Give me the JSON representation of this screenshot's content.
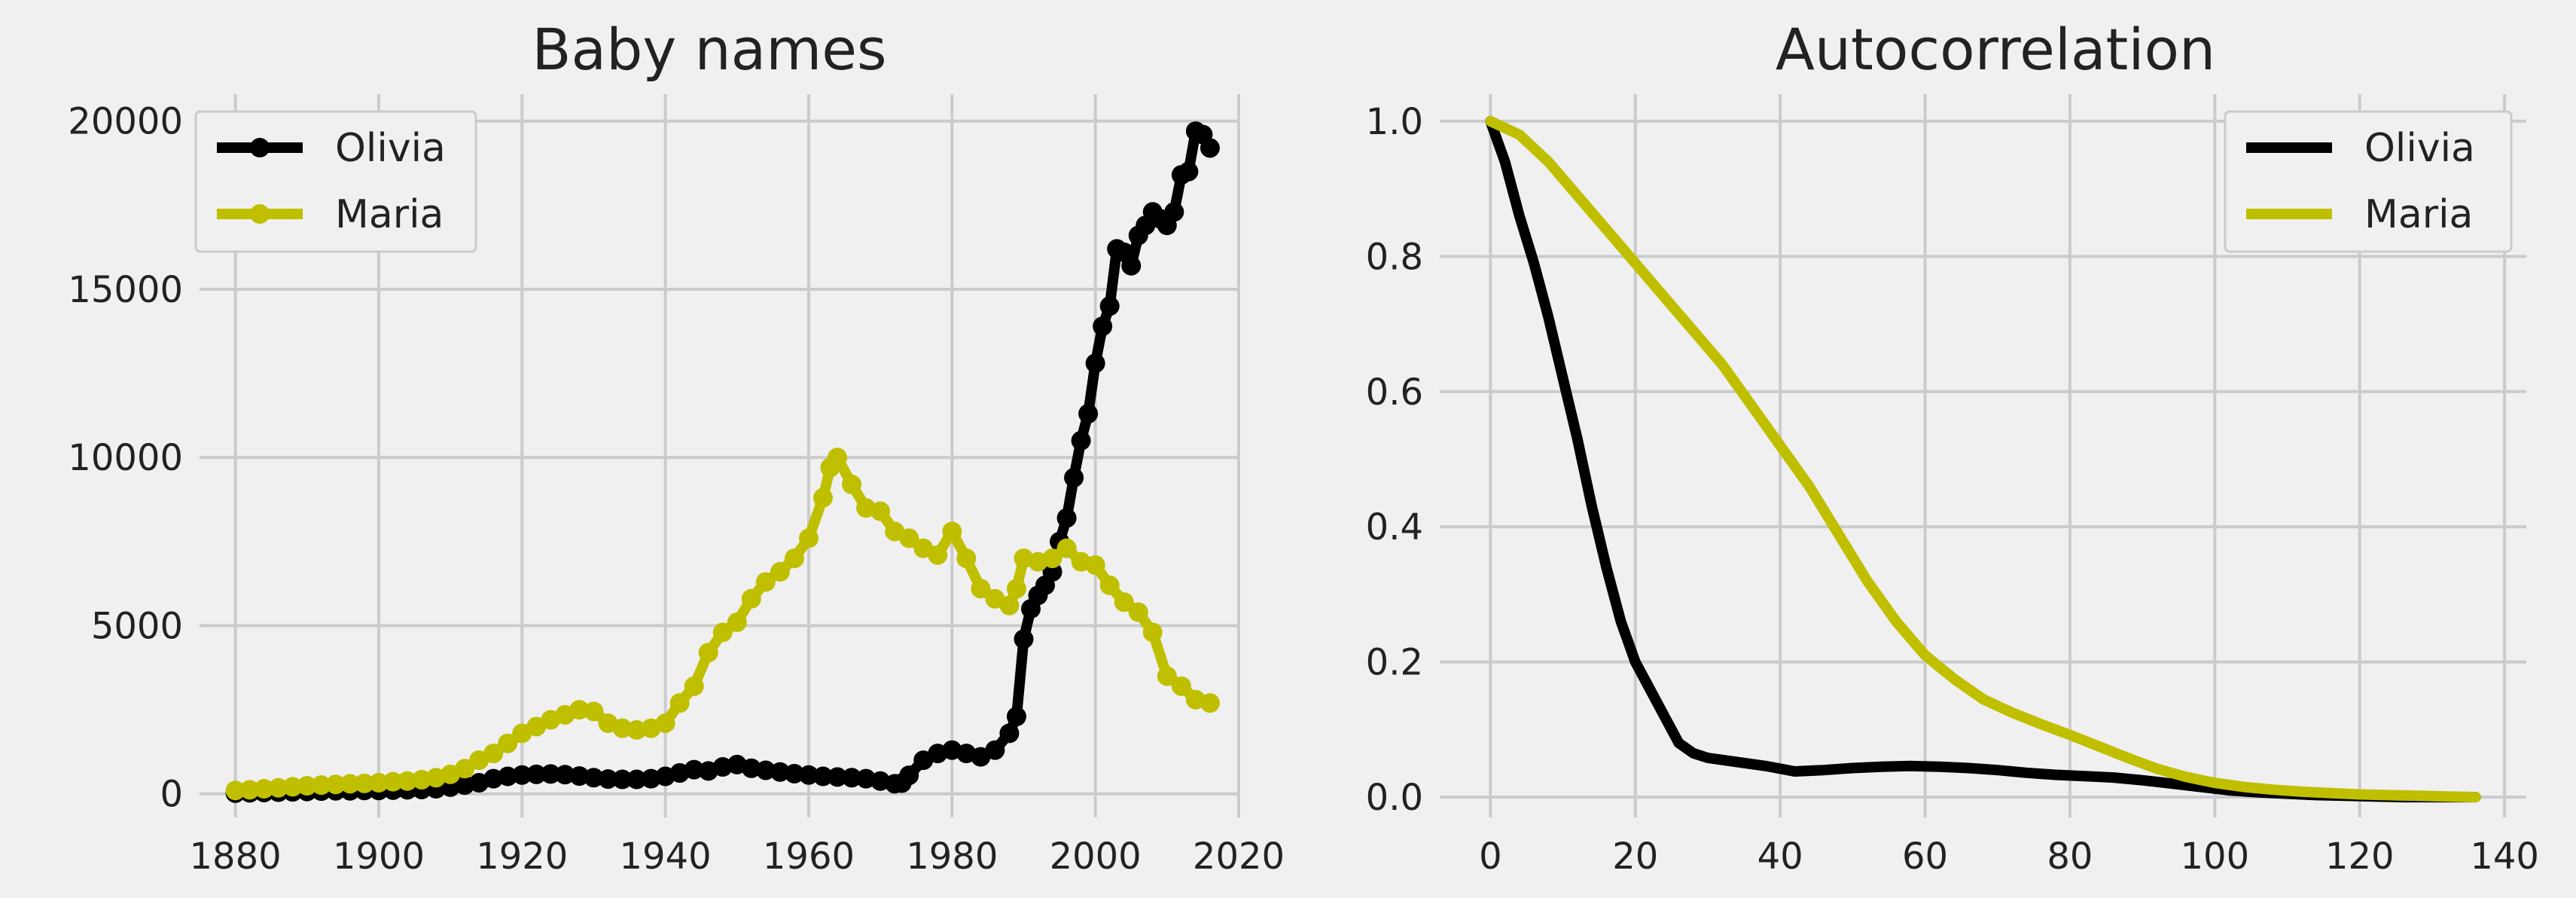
{
  "colors": {
    "olivia": "#000000",
    "maria": "#bfbf00",
    "background": "#f0f0f0",
    "grid": "#cbcbcb"
  },
  "chart_data": [
    {
      "type": "line",
      "title": "Baby names",
      "xlabel": "",
      "ylabel": "",
      "xlim": [
        1875,
        2020
      ],
      "ylim": [
        -700,
        20800
      ],
      "xticks": [
        1880,
        1900,
        1920,
        1940,
        1960,
        1980,
        2000,
        2020
      ],
      "yticks": [
        0,
        5000,
        10000,
        15000,
        20000
      ],
      "grid": true,
      "legend": "upper-left",
      "markers": true,
      "series": [
        {
          "name": "Olivia",
          "color": "#000000",
          "x": [
            1880,
            1882,
            1884,
            1886,
            1888,
            1890,
            1892,
            1894,
            1896,
            1898,
            1900,
            1902,
            1904,
            1906,
            1908,
            1910,
            1912,
            1914,
            1916,
            1918,
            1920,
            1922,
            1924,
            1926,
            1928,
            1930,
            1932,
            1934,
            1936,
            1938,
            1940,
            1942,
            1944,
            1946,
            1948,
            1950,
            1952,
            1954,
            1956,
            1958,
            1960,
            1962,
            1964,
            1966,
            1968,
            1970,
            1972,
            1973,
            1974,
            1976,
            1978,
            1980,
            1982,
            1984,
            1986,
            1988,
            1989,
            1990,
            1991,
            1992,
            1993,
            1994,
            1995,
            1996,
            1997,
            1998,
            1999,
            2000,
            2001,
            2002,
            2003,
            2004,
            2005,
            2006,
            2007,
            2008,
            2009,
            2010,
            2011,
            2012,
            2013,
            2014,
            2015,
            2016
          ],
          "y": [
            20,
            30,
            40,
            50,
            60,
            70,
            80,
            90,
            90,
            100,
            100,
            110,
            120,
            130,
            150,
            200,
            260,
            330,
            450,
            520,
            560,
            580,
            590,
            570,
            530,
            480,
            440,
            430,
            430,
            450,
            520,
            620,
            720,
            680,
            800,
            870,
            760,
            700,
            650,
            600,
            560,
            520,
            500,
            480,
            450,
            380,
            300,
            320,
            550,
            1000,
            1200,
            1300,
            1200,
            1100,
            1300,
            1800,
            2300,
            4600,
            5500,
            5900,
            6200,
            6600,
            7500,
            8200,
            9400,
            10500,
            11300,
            12800,
            13900,
            14500,
            16200,
            16100,
            15700,
            16600,
            16900,
            17300,
            17100,
            16900,
            17300,
            18400,
            18500,
            19700,
            19600,
            19200
          ]
        },
        {
          "name": "Maria",
          "color": "#bfbf00",
          "x": [
            1880,
            1882,
            1884,
            1886,
            1888,
            1890,
            1892,
            1894,
            1896,
            1898,
            1900,
            1902,
            1904,
            1906,
            1908,
            1910,
            1912,
            1914,
            1916,
            1918,
            1920,
            1922,
            1924,
            1926,
            1928,
            1930,
            1932,
            1934,
            1936,
            1938,
            1940,
            1942,
            1944,
            1946,
            1948,
            1950,
            1952,
            1954,
            1956,
            1958,
            1960,
            1962,
            1963,
            1964,
            1966,
            1968,
            1970,
            1972,
            1974,
            1976,
            1978,
            1980,
            1982,
            1984,
            1986,
            1988,
            1989,
            1990,
            1992,
            1994,
            1996,
            1998,
            2000,
            2002,
            2004,
            2006,
            2008,
            2010,
            2012,
            2014,
            2016
          ],
          "y": [
            100,
            120,
            150,
            180,
            210,
            240,
            260,
            280,
            300,
            310,
            330,
            360,
            380,
            420,
            480,
            580,
            750,
            1000,
            1200,
            1500,
            1800,
            2000,
            2200,
            2350,
            2500,
            2450,
            2100,
            1950,
            1900,
            1950,
            2100,
            2700,
            3200,
            4200,
            4800,
            5100,
            5800,
            6300,
            6600,
            7000,
            7600,
            8800,
            9700,
            10000,
            9200,
            8500,
            8400,
            7800,
            7600,
            7300,
            7100,
            7800,
            7000,
            6100,
            5800,
            5600,
            6100,
            7000,
            6900,
            7000,
            7300,
            6900,
            6800,
            6200,
            5700,
            5400,
            4800,
            3500,
            3200,
            2800,
            2700
          ]
        }
      ]
    },
    {
      "type": "line",
      "title": "Autocorrelation",
      "xlabel": "",
      "ylabel": "",
      "xlim": [
        -7,
        143
      ],
      "ylim": [
        -0.03,
        1.04
      ],
      "xticks": [
        0,
        20,
        40,
        60,
        80,
        100,
        120,
        140
      ],
      "yticks": [
        0.0,
        0.2,
        0.4,
        0.6,
        0.8,
        1.0
      ],
      "grid": true,
      "legend": "upper-right",
      "markers": false,
      "series": [
        {
          "name": "Olivia",
          "color": "#000000",
          "x": [
            0,
            2,
            4,
            6,
            8,
            10,
            12,
            14,
            16,
            18,
            20,
            22,
            24,
            26,
            28,
            30,
            34,
            38,
            42,
            46,
            50,
            54,
            58,
            62,
            66,
            70,
            74,
            78,
            82,
            86,
            90,
            94,
            98,
            102,
            106,
            110,
            114,
            118,
            122,
            126,
            130,
            136
          ],
          "y": [
            1.0,
            0.94,
            0.86,
            0.79,
            0.71,
            0.62,
            0.53,
            0.43,
            0.34,
            0.26,
            0.2,
            0.16,
            0.12,
            0.08,
            0.065,
            0.058,
            0.052,
            0.046,
            0.038,
            0.04,
            0.043,
            0.045,
            0.046,
            0.045,
            0.043,
            0.04,
            0.036,
            0.033,
            0.031,
            0.029,
            0.025,
            0.02,
            0.015,
            0.01,
            0.007,
            0.005,
            0.003,
            0.002,
            0.001,
            0.0,
            0.0,
            0.0
          ]
        },
        {
          "name": "Maria",
          "color": "#bfbf00",
          "x": [
            0,
            4,
            8,
            12,
            16,
            20,
            24,
            28,
            32,
            36,
            40,
            44,
            48,
            52,
            56,
            60,
            64,
            68,
            72,
            76,
            80,
            84,
            88,
            92,
            96,
            100,
            104,
            108,
            112,
            116,
            120,
            124,
            128,
            132,
            136
          ],
          "y": [
            1.0,
            0.98,
            0.94,
            0.89,
            0.84,
            0.79,
            0.74,
            0.69,
            0.64,
            0.58,
            0.52,
            0.46,
            0.39,
            0.32,
            0.26,
            0.21,
            0.175,
            0.145,
            0.125,
            0.108,
            0.092,
            0.075,
            0.058,
            0.042,
            0.03,
            0.021,
            0.015,
            0.011,
            0.008,
            0.006,
            0.004,
            0.003,
            0.002,
            0.001,
            0.0
          ]
        }
      ]
    }
  ]
}
